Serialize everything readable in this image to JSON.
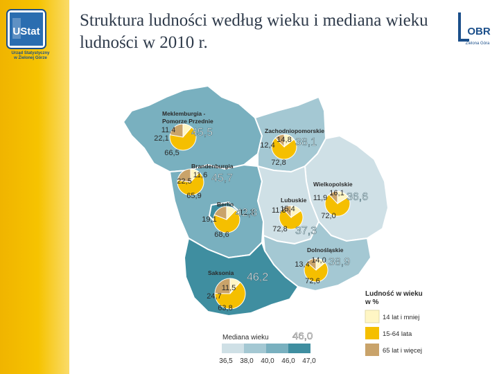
{
  "title": "Struktura ludności według wieku i mediana wieku ludności w 2010 r.",
  "logo_left": {
    "text": "UStat",
    "caption_1": "Urząd Statystyczny",
    "caption_2": "w Zielonej Górze"
  },
  "logo_right": {
    "text": "OBR",
    "caption": "Zielona Góra"
  },
  "colors": {
    "age_0_14": "#fff6c4",
    "age_15_64": "#f5bf00",
    "age_65_plus": "#c9a36a",
    "median_1": "#cfe0e6",
    "median_2": "#a4c8d3",
    "median_3": "#79b0bf",
    "median_4": "#3f8ea0"
  },
  "regions": [
    {
      "name": "Meklemburgia - Pomorze Przednie",
      "name_line1": "Meklemburgia -",
      "name_line2": "Pomorze Przednie",
      "median": "45,5",
      "age_0_14": "11,4",
      "age_15_64": "66,5",
      "age_65_plus": "22,1"
    },
    {
      "name": "Zachodniopomorskie",
      "median": "38,1",
      "age_0_14": "14,8",
      "age_15_64": "72,8",
      "age_65_plus": "12,4"
    },
    {
      "name": "Brandenburgia",
      "median": "45,7",
      "age_0_14": "11,6",
      "age_15_64": "65,9",
      "age_65_plus": "22,5"
    },
    {
      "name": "Wielkopolskie",
      "median": "36,6",
      "age_0_14": "16,1",
      "age_15_64": "72,0",
      "age_65_plus": "11,9"
    },
    {
      "name": "Berlin",
      "median": "42,8",
      "age_0_14": "12,3",
      "age_15_64": "68,6",
      "age_65_plus": "19,1"
    },
    {
      "name": "Lubuskie",
      "median": "37,3",
      "age_0_14": "15,4",
      "age_15_64": "72,8",
      "age_65_plus": "11,8"
    },
    {
      "name": "Dolnośląskie",
      "median": "38,9",
      "age_0_14": "14,0",
      "age_15_64": "72,6",
      "age_65_plus": "13,4"
    },
    {
      "name": "Saksonia",
      "median": "46,2",
      "age_0_14": "11,5",
      "age_15_64": "63,8",
      "age_65_plus": "24,7"
    }
  ],
  "legend": {
    "title_line1": "Ludność w wieku",
    "title_line2": "w %",
    "items": [
      {
        "label": "14 lat i mniej"
      },
      {
        "label": "15-64 lata"
      },
      {
        "label": "65 lat i więcej"
      }
    ]
  },
  "median_scale": {
    "title": "Mediana wieku",
    "highlight": "46,0",
    "ticks": [
      "36,5",
      "38,0",
      "40,0",
      "46,0",
      "47,0"
    ]
  }
}
